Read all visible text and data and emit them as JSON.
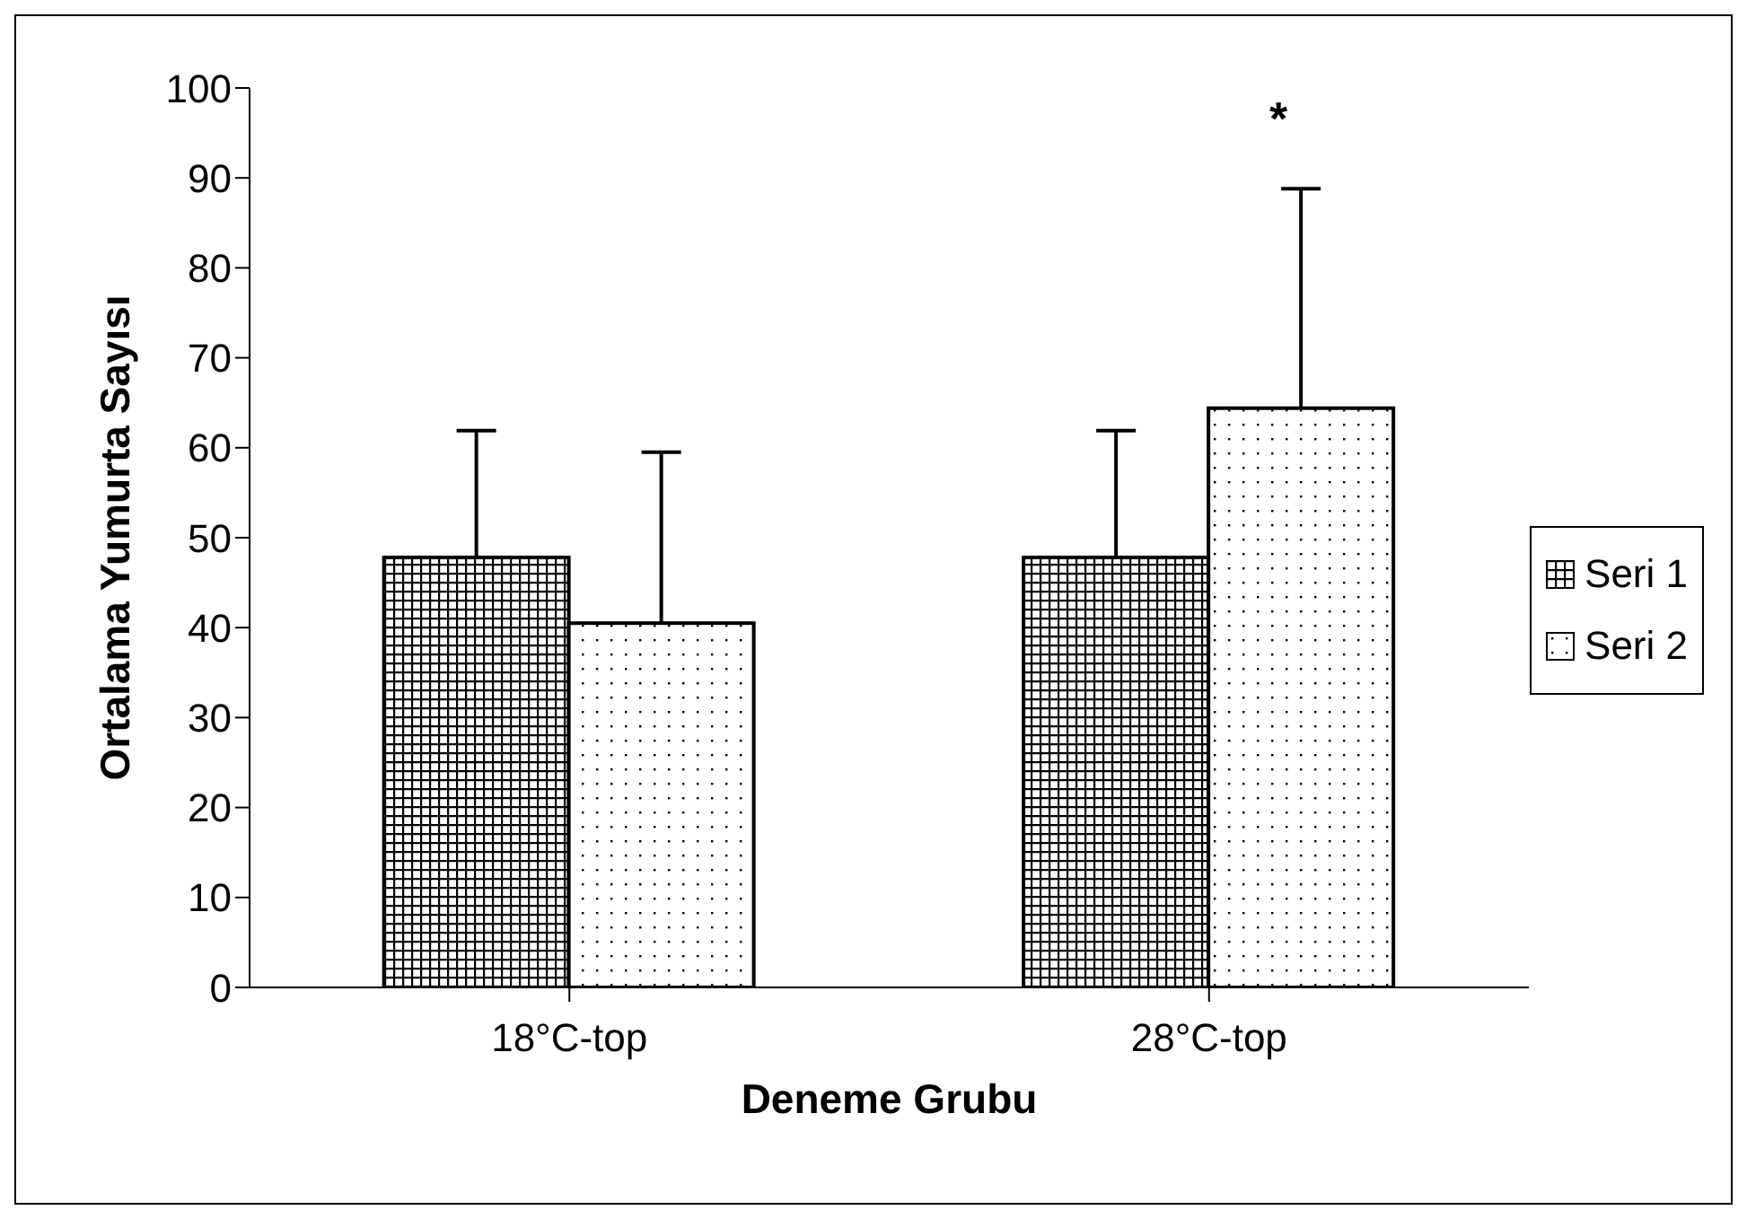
{
  "chart_data": {
    "type": "bar",
    "xlabel": "Deneme Grubu",
    "ylabel": "Ortalama Yumurta Sayısı",
    "categories": [
      "18°C-top",
      "28°C-top"
    ],
    "series": [
      {
        "name": "Seri 1",
        "color": "#000000",
        "values": [
          47.8,
          47.8
        ],
        "errors": [
          [
            47.8,
            61.9
          ],
          [
            47.8,
            61.9
          ]
        ]
      },
      {
        "name": "Seri 2",
        "color": "#000000",
        "values": [
          40.5,
          64.4
        ],
        "errors": [
          [
            40.5,
            59.5
          ],
          [
            64.4,
            88.8
          ]
        ]
      }
    ],
    "ylim": [
      0,
      100
    ],
    "yticks": [
      0,
      10,
      20,
      30,
      40,
      50,
      60,
      70,
      80,
      90,
      100
    ],
    "grid": false,
    "legend": "right",
    "annotations": [
      "*"
    ]
  }
}
